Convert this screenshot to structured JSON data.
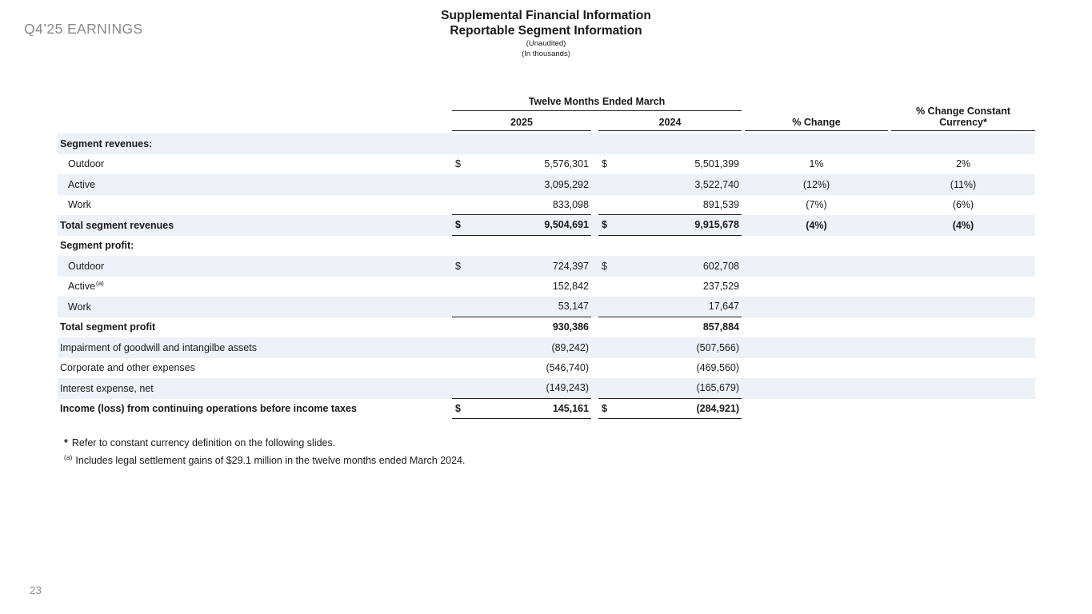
{
  "slide": {
    "eyebrow": "Q4’25 EARNINGS",
    "title_line1": "Supplemental Financial Information",
    "title_line2": "Reportable Segment Information",
    "subtitle1": "(Unaudited)",
    "subtitle2": "(In thousands)",
    "page_number": "23"
  },
  "table": {
    "col_group_header": "Twelve Months Ended March",
    "col_headers": [
      "2025",
      "2024",
      "% Change",
      "% Change Constant Currency*"
    ],
    "rows": [
      {
        "label": "Segment revenues:",
        "style": "section"
      },
      {
        "label": "Outdoor",
        "indent": true,
        "d1": "$",
        "v1": "5,576,301",
        "d2": "$",
        "v2": "5,501,399",
        "pct": "1%",
        "pcc": "2%"
      },
      {
        "label": "Active",
        "indent": true,
        "v1": "3,095,292",
        "v2": "3,522,740",
        "pct": "(12%)",
        "pcc": "(11%)"
      },
      {
        "label": "Work",
        "indent": true,
        "v1": "833,098",
        "v2": "891,539",
        "pct": "(7%)",
        "pcc": "(6%)",
        "rule_below": true
      },
      {
        "label": "Total segment revenues",
        "style": "total",
        "d1": "$",
        "v1": "9,504,691",
        "d2": "$",
        "v2": "9,915,678",
        "pct": "(4%)",
        "pcc": "(4%)",
        "rule_below": true
      },
      {
        "label": "Segment profit:",
        "style": "section"
      },
      {
        "label": "Outdoor",
        "indent": true,
        "d1": "$",
        "v1": "724,397",
        "d2": "$",
        "v2": "602,708"
      },
      {
        "label": "Active",
        "indent": true,
        "sup": "(a)",
        "v1": "152,842",
        "v2": "237,529"
      },
      {
        "label": "Work",
        "indent": true,
        "v1": "53,147",
        "v2": "17,647",
        "rule_below": true
      },
      {
        "label": "Total segment profit",
        "style": "total",
        "v1": "930,386",
        "v2": "857,884"
      },
      {
        "label": "Impairment of goodwill and intangilbe assets",
        "v1": "(89,242)",
        "v2": "(507,566)"
      },
      {
        "label": "Corporate and other expenses",
        "v1": "(546,740)",
        "v2": "(469,560)"
      },
      {
        "label": "Interest expense, net",
        "v1": "(149,243)",
        "v2": "(165,679)",
        "rule_below": true
      },
      {
        "label": "Income (loss) from continuing operations before income taxes",
        "style": "total",
        "d1": "$",
        "v1": "145,161",
        "d2": "$",
        "v2": "(284,921)",
        "rule_below": true
      }
    ],
    "footnotes": [
      {
        "marker": "*",
        "text": "Refer to constant currency definition on the following slides."
      },
      {
        "marker": "(a)",
        "text": "Includes legal settlement gains of $29.1 million in the twelve months ended March 2024."
      }
    ]
  }
}
